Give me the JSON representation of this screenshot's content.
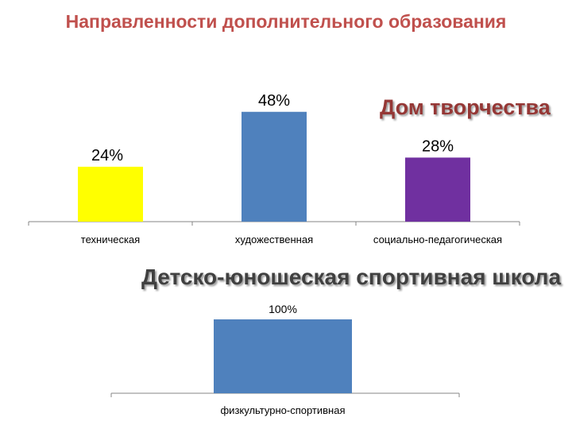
{
  "title": "Направленности дополнительного образования",
  "subtitles": {
    "top": "Дом творчества",
    "bottom": "Детско-юношеская спортивная школа"
  },
  "chart_data": [
    {
      "type": "bar",
      "categories": [
        "техническая",
        "художественная",
        "социально-педагогическая"
      ],
      "values": [
        24,
        48,
        28
      ],
      "value_labels": [
        "24%",
        "48%",
        "28%"
      ],
      "colors": [
        "#ffff00",
        "#4f81bd",
        "#7030a0"
      ],
      "ylim": [
        0,
        50
      ],
      "grid": false,
      "title": "Дом творчества"
    },
    {
      "type": "bar",
      "categories": [
        "физкультурно-спортивная"
      ],
      "values": [
        100
      ],
      "value_labels": [
        "100%"
      ],
      "colors": [
        "#4f81bd"
      ],
      "ylim": [
        0,
        100
      ],
      "grid": false,
      "title": "Детско-юношеская спортивная школа"
    }
  ]
}
